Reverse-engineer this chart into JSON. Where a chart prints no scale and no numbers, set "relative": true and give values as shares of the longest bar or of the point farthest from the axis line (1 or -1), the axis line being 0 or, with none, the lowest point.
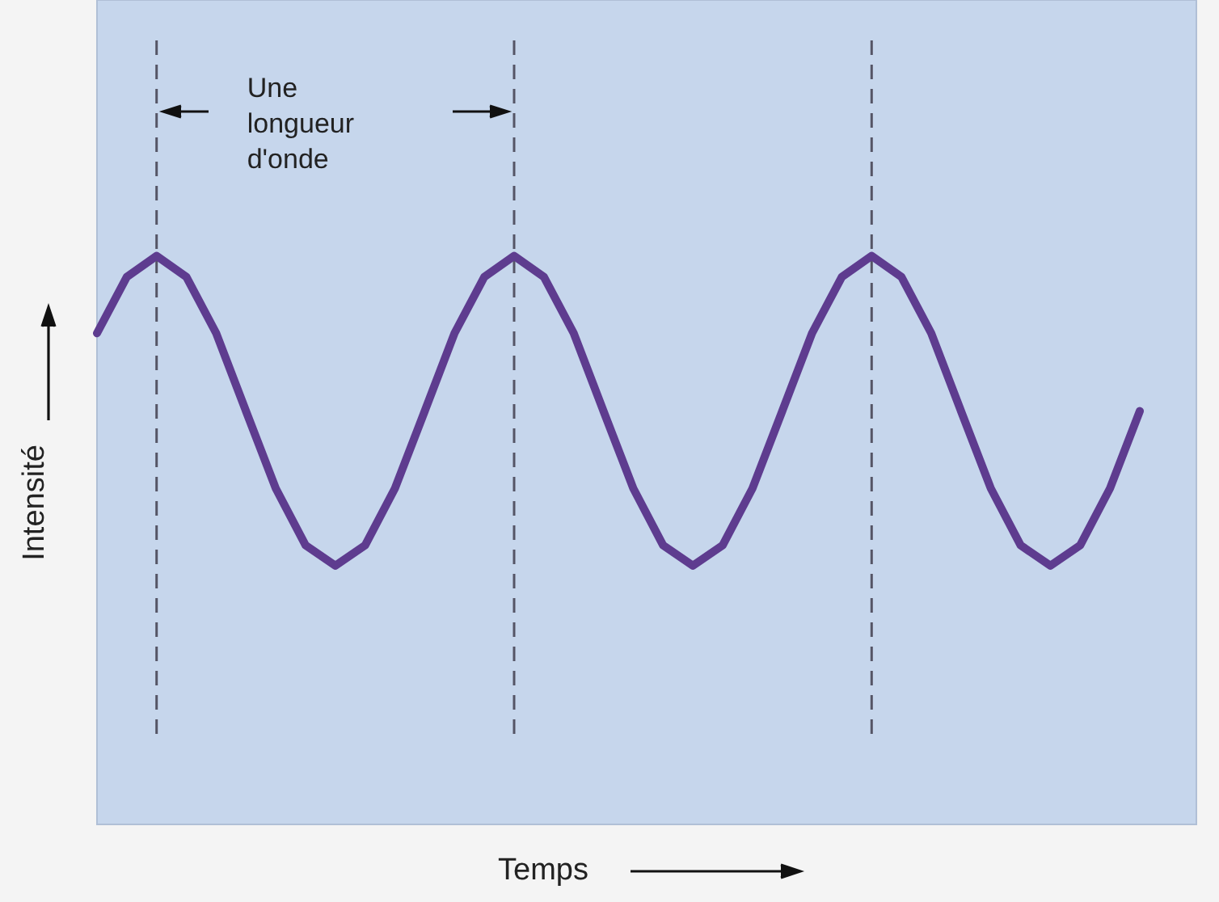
{
  "chart_data": {
    "type": "line",
    "relative": true,
    "xlabel": "Temps",
    "ylabel": "Intensité",
    "legend": false,
    "grid": "x",
    "marker": "none",
    "line_style": "solid",
    "categories": [
      null,
      null,
      null,
      null,
      null,
      null,
      null,
      null,
      null,
      null,
      null,
      null,
      null,
      null,
      null,
      null,
      null,
      null,
      null,
      null,
      null,
      null,
      null,
      null,
      null,
      null,
      null,
      null,
      null,
      null,
      null,
      null,
      null,
      null,
      null,
      null
    ],
    "series": [
      {
        "color": "#5e3c8f",
        "values": [
          0.864,
          0.963,
          1,
          0.963,
          0.864,
          0.727,
          0.591,
          0.491,
          0.455,
          0.491,
          0.591,
          0.727,
          0.864,
          0.963,
          1,
          0.963,
          0.864,
          0.727,
          0.591,
          0.491,
          0.455,
          0.491,
          0.591,
          0.727,
          0.864,
          0.963,
          1,
          0.963,
          0.864,
          0.727,
          0.591,
          0.491,
          0.455,
          0.491,
          0.591,
          0.727
        ]
      }
    ],
    "annotations": [
      "Une longueur d'onde"
    ]
  }
}
